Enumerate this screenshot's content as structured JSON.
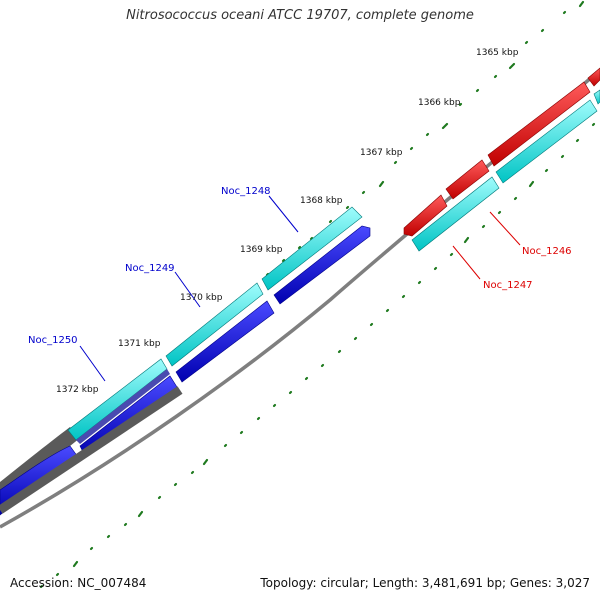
{
  "title": "Nitrosococcus oceani ATCC 19707, complete genome",
  "footer": {
    "accession": "Accession: NC_007484",
    "summary": "Topology: circular; Length: 3,481,691 bp; Genes: 3,027"
  },
  "colors": {
    "backbone": "#7f7f7f",
    "gc_track": "#5a5a5a",
    "forward_cds_red": "#ee0000",
    "forward_cds_cyan": "#00e5e5",
    "reverse_cds_blue": "#0000dd",
    "tick": "#1f7a1f",
    "label_blue": "#0000cc",
    "label_red": "#dd0000"
  },
  "scale_labels": [
    "1365 kbp",
    "1366 kbp",
    "1367 kbp",
    "1368 kbp",
    "1369 kbp",
    "1370 kbp",
    "1371 kbp",
    "1372 kbp"
  ],
  "gene_labels": [
    {
      "name": "Noc_1246",
      "color": "#dd0000"
    },
    {
      "name": "Noc_1247",
      "color": "#dd0000"
    },
    {
      "name": "Noc_1248",
      "color": "#0000cc"
    },
    {
      "name": "Noc_1249",
      "color": "#0000cc"
    },
    {
      "name": "Noc_1250",
      "color": "#0000cc"
    }
  ]
}
